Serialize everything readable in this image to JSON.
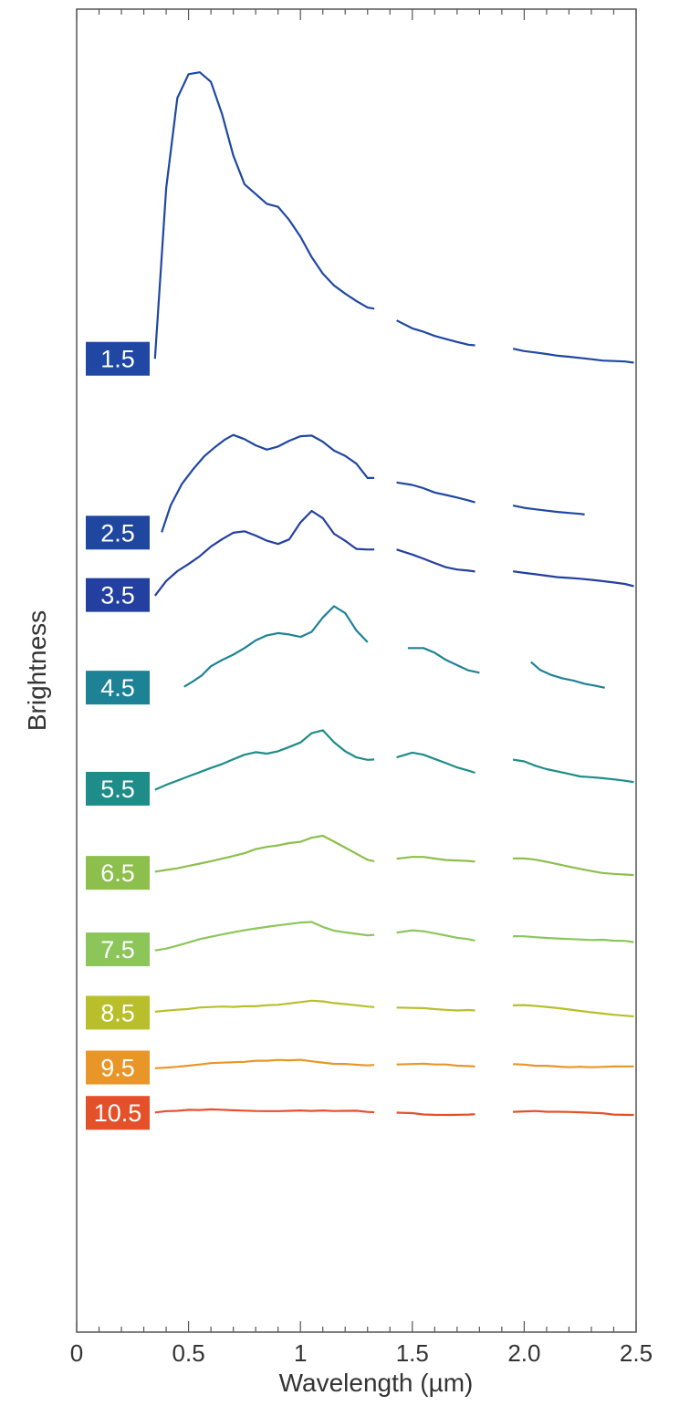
{
  "chart_data": {
    "type": "line",
    "title": "",
    "xlabel": "Wavelength (µm)",
    "ylabel": "Brightness",
    "xlim": [
      0,
      2.5
    ],
    "ylim": [
      0,
      14
    ],
    "x_ticks": [
      "0",
      "0.5",
      "1",
      "1.5",
      "2.0",
      "2.5"
    ],
    "gaps_um": [
      [
        1.34,
        1.42
      ],
      [
        1.8,
        1.94
      ]
    ],
    "grid": false,
    "legend": "none",
    "series": [
      {
        "label": "1.5",
        "color": "#1f47a3",
        "x": [
          0.35,
          0.4,
          0.45,
          0.5,
          0.55,
          0.6,
          0.65,
          0.7,
          0.75,
          0.8,
          0.85,
          0.9,
          0.95,
          1.0,
          1.05,
          1.1,
          1.15,
          1.2,
          1.25,
          1.3,
          1.33,
          1.43,
          1.5,
          1.55,
          1.6,
          1.65,
          1.7,
          1.75,
          1.78,
          1.95,
          2.0,
          2.05,
          2.1,
          2.15,
          2.2,
          2.25,
          2.3,
          2.35,
          2.4,
          2.45,
          2.49
        ],
        "y": [
          10.3,
          12.1,
          13.05,
          13.3,
          13.32,
          13.22,
          12.88,
          12.45,
          12.15,
          12.05,
          11.95,
          11.92,
          11.78,
          11.6,
          11.38,
          11.2,
          11.07,
          10.98,
          10.9,
          10.83,
          10.82,
          10.7,
          10.62,
          10.59,
          10.55,
          10.52,
          10.49,
          10.46,
          10.45,
          10.41,
          10.38,
          10.36,
          10.34,
          10.32,
          10.31,
          10.3,
          10.29,
          10.28,
          10.28,
          10.28,
          10.27
        ]
      },
      {
        "label": "2.5",
        "color": "#2047a0",
        "x": [
          0.38,
          0.42,
          0.47,
          0.52,
          0.57,
          0.62,
          0.66,
          0.7,
          0.75,
          0.8,
          0.85,
          0.9,
          0.95,
          1.0,
          1.05,
          1.1,
          1.15,
          1.2,
          1.25,
          1.3,
          1.33,
          1.43,
          1.5,
          1.55,
          1.6,
          1.65,
          1.7,
          1.75,
          1.78,
          1.95,
          2.0,
          2.05,
          2.1,
          2.15,
          2.2,
          2.25,
          2.27
        ],
        "y": [
          8.46,
          8.75,
          8.98,
          9.14,
          9.28,
          9.38,
          9.45,
          9.5,
          9.45,
          9.38,
          9.33,
          9.36,
          9.42,
          9.47,
          9.48,
          9.42,
          9.33,
          9.28,
          9.2,
          9.05,
          9.05,
          9.0,
          8.97,
          8.93,
          8.88,
          8.85,
          8.82,
          8.79,
          8.77,
          8.74,
          8.72,
          8.71,
          8.7,
          8.69,
          8.68,
          8.67,
          8.66
        ]
      },
      {
        "label": "3.5",
        "color": "#233fa0",
        "x": [
          0.35,
          0.4,
          0.45,
          0.5,
          0.55,
          0.6,
          0.65,
          0.7,
          0.75,
          0.8,
          0.85,
          0.9,
          0.95,
          1.0,
          1.05,
          1.1,
          1.15,
          1.2,
          1.25,
          1.3,
          1.33,
          1.43,
          1.5,
          1.55,
          1.6,
          1.65,
          1.7,
          1.75,
          1.78,
          1.95,
          2.0,
          2.05,
          2.1,
          2.15,
          2.2,
          2.25,
          2.3,
          2.35,
          2.4,
          2.45,
          2.49
        ],
        "y": [
          7.8,
          7.95,
          8.05,
          8.12,
          8.2,
          8.3,
          8.38,
          8.45,
          8.47,
          8.43,
          8.38,
          8.35,
          8.4,
          8.58,
          8.7,
          8.62,
          8.45,
          8.37,
          8.28,
          8.27,
          8.27,
          8.27,
          8.22,
          8.18,
          8.14,
          8.1,
          8.08,
          8.07,
          8.06,
          8.06,
          8.04,
          8.02,
          8.0,
          7.98,
          7.97,
          7.96,
          7.95,
          7.94,
          7.93,
          7.92,
          7.9
        ]
      },
      {
        "label": "4.5",
        "color": "#1e8296",
        "x": [
          0.48,
          0.52,
          0.56,
          0.6,
          0.65,
          0.7,
          0.75,
          0.8,
          0.85,
          0.9,
          0.95,
          1.0,
          1.05,
          1.1,
          1.15,
          1.2,
          1.25,
          1.3,
          1.35,
          1.4,
          1.48,
          1.55,
          1.6,
          1.65,
          1.7,
          1.75,
          1.8,
          1.85,
          1.9,
          2.03,
          2.07,
          2.12,
          2.17,
          2.22,
          2.27,
          2.32,
          2.36
        ],
        "y": [
          6.82,
          6.88,
          6.95,
          7.05,
          7.12,
          7.18,
          7.25,
          7.33,
          7.38,
          7.4,
          7.38,
          7.35,
          7.4,
          7.55,
          7.67,
          7.6,
          7.42,
          7.3,
          7.22,
          7.18,
          7.25,
          7.25,
          7.2,
          7.12,
          7.06,
          7.0,
          6.97,
          6.94,
          6.92,
          7.08,
          7.0,
          6.95,
          6.92,
          6.9,
          6.87,
          6.85,
          6.83
        ]
      },
      {
        "label": "5.5",
        "color": "#1e8c88",
        "x": [
          0.35,
          0.4,
          0.45,
          0.5,
          0.55,
          0.6,
          0.65,
          0.7,
          0.75,
          0.8,
          0.85,
          0.9,
          0.95,
          1.0,
          1.05,
          1.1,
          1.15,
          1.2,
          1.25,
          1.3,
          1.33,
          1.43,
          1.5,
          1.55,
          1.6,
          1.65,
          1.7,
          1.75,
          1.78,
          1.95,
          2.0,
          2.05,
          2.1,
          2.15,
          2.2,
          2.25,
          2.3,
          2.35,
          2.4,
          2.45,
          2.49
        ],
        "y": [
          5.75,
          5.8,
          5.84,
          5.88,
          5.92,
          5.96,
          6.0,
          6.05,
          6.1,
          6.13,
          6.12,
          6.15,
          6.2,
          6.25,
          6.35,
          6.38,
          6.25,
          6.15,
          6.08,
          6.05,
          6.05,
          6.07,
          6.12,
          6.1,
          6.06,
          6.02,
          5.98,
          5.95,
          5.93,
          6.07,
          6.05,
          6.0,
          5.96,
          5.93,
          5.9,
          5.87,
          5.86,
          5.85,
          5.84,
          5.83,
          5.82
        ]
      },
      {
        "label": "6.5",
        "color": "#8cbf4c",
        "x": [
          0.35,
          0.4,
          0.45,
          0.5,
          0.55,
          0.6,
          0.65,
          0.7,
          0.75,
          0.8,
          0.85,
          0.9,
          0.95,
          1.0,
          1.05,
          1.1,
          1.15,
          1.2,
          1.25,
          1.3,
          1.33,
          1.43,
          1.5,
          1.55,
          1.6,
          1.65,
          1.7,
          1.75,
          1.78,
          1.95,
          2.0,
          2.05,
          2.1,
          2.15,
          2.2,
          2.25,
          2.3,
          2.35,
          2.4,
          2.45,
          2.49
        ],
        "y": [
          4.86,
          4.88,
          4.9,
          4.93,
          4.96,
          4.99,
          5.02,
          5.05,
          5.08,
          5.12,
          5.14,
          5.15,
          5.17,
          5.18,
          5.22,
          5.24,
          5.18,
          5.12,
          5.06,
          5.0,
          4.99,
          5.02,
          5.04,
          5.04,
          5.02,
          5.0,
          4.99,
          4.98,
          4.97,
          5.0,
          5.0,
          4.99,
          4.97,
          4.95,
          4.93,
          4.91,
          4.89,
          4.87,
          4.86,
          4.85,
          4.84
        ]
      },
      {
        "label": "7.5",
        "color": "#8cc65a",
        "x": [
          0.35,
          0.4,
          0.45,
          0.5,
          0.55,
          0.6,
          0.65,
          0.7,
          0.75,
          0.8,
          0.85,
          0.9,
          0.95,
          1.0,
          1.05,
          1.1,
          1.15,
          1.2,
          1.25,
          1.3,
          1.33,
          1.43,
          1.5,
          1.55,
          1.6,
          1.65,
          1.7,
          1.75,
          1.78,
          1.95,
          2.0,
          2.05,
          2.1,
          2.15,
          2.2,
          2.25,
          2.3,
          2.35,
          2.4,
          2.45,
          2.49
        ],
        "y": [
          4.05,
          4.07,
          4.1,
          4.13,
          4.16,
          4.18,
          4.2,
          4.22,
          4.24,
          4.26,
          4.28,
          4.3,
          4.32,
          4.34,
          4.35,
          4.3,
          4.26,
          4.24,
          4.22,
          4.2,
          4.2,
          4.22,
          4.24,
          4.23,
          4.21,
          4.19,
          4.17,
          4.16,
          4.15,
          4.2,
          4.2,
          4.19,
          4.18,
          4.17,
          4.16,
          4.15,
          4.14,
          4.14,
          4.13,
          4.13,
          4.12
        ]
      },
      {
        "label": "8.5",
        "color": "#b8bf2a",
        "x": [
          0.35,
          0.4,
          0.45,
          0.5,
          0.55,
          0.6,
          0.65,
          0.7,
          0.75,
          0.8,
          0.85,
          0.9,
          0.95,
          1.0,
          1.05,
          1.1,
          1.15,
          1.2,
          1.25,
          1.3,
          1.33,
          1.43,
          1.5,
          1.55,
          1.6,
          1.65,
          1.7,
          1.75,
          1.78,
          1.95,
          2.0,
          2.05,
          2.1,
          2.15,
          2.2,
          2.25,
          2.3,
          2.35,
          2.4,
          2.45,
          2.49
        ],
        "y": [
          3.38,
          3.39,
          3.4,
          3.41,
          3.43,
          3.44,
          3.45,
          3.45,
          3.46,
          3.46,
          3.47,
          3.47,
          3.48,
          3.49,
          3.5,
          3.49,
          3.47,
          3.46,
          3.45,
          3.44,
          3.44,
          3.44,
          3.44,
          3.44,
          3.43,
          3.42,
          3.41,
          3.41,
          3.4,
          3.45,
          3.45,
          3.44,
          3.43,
          3.42,
          3.41,
          3.4,
          3.39,
          3.38,
          3.37,
          3.36,
          3.35
        ]
      },
      {
        "label": "9.5",
        "color": "#e89628",
        "x": [
          0.35,
          0.4,
          0.45,
          0.5,
          0.55,
          0.6,
          0.65,
          0.7,
          0.75,
          0.8,
          0.85,
          0.9,
          0.95,
          1.0,
          1.05,
          1.1,
          1.15,
          1.2,
          1.25,
          1.3,
          1.33,
          1.43,
          1.5,
          1.55,
          1.6,
          1.65,
          1.7,
          1.75,
          1.78,
          1.95,
          2.0,
          2.05,
          2.1,
          2.15,
          2.2,
          2.25,
          2.3,
          2.35,
          2.4,
          2.45,
          2.49
        ],
        "y": [
          2.8,
          2.81,
          2.82,
          2.83,
          2.84,
          2.85,
          2.85,
          2.85,
          2.85,
          2.86,
          2.86,
          2.87,
          2.87,
          2.88,
          2.87,
          2.86,
          2.85,
          2.85,
          2.84,
          2.83,
          2.83,
          2.83,
          2.83,
          2.83,
          2.82,
          2.82,
          2.81,
          2.81,
          2.81,
          2.84,
          2.84,
          2.83,
          2.83,
          2.82,
          2.81,
          2.81,
          2.8,
          2.8,
          2.8,
          2.8,
          2.8
        ]
      },
      {
        "label": "10.5",
        "color": "#e4502a",
        "x": [
          0.35,
          0.4,
          0.45,
          0.5,
          0.55,
          0.6,
          0.65,
          0.7,
          0.75,
          0.8,
          0.85,
          0.9,
          0.95,
          1.0,
          1.05,
          1.1,
          1.15,
          1.2,
          1.25,
          1.3,
          1.33,
          1.43,
          1.5,
          1.55,
          1.6,
          1.65,
          1.7,
          1.75,
          1.78,
          1.95,
          2.0,
          2.05,
          2.1,
          2.15,
          2.2,
          2.25,
          2.3,
          2.35,
          2.4,
          2.45,
          2.49
        ],
        "y": [
          2.32,
          2.33,
          2.33,
          2.34,
          2.34,
          2.35,
          2.35,
          2.35,
          2.35,
          2.35,
          2.35,
          2.35,
          2.35,
          2.35,
          2.34,
          2.34,
          2.33,
          2.33,
          2.33,
          2.32,
          2.32,
          2.32,
          2.32,
          2.31,
          2.31,
          2.31,
          2.31,
          2.31,
          2.31,
          2.33,
          2.33,
          2.33,
          2.32,
          2.32,
          2.32,
          2.32,
          2.32,
          2.32,
          2.31,
          2.31,
          2.31
        ]
      }
    ]
  }
}
